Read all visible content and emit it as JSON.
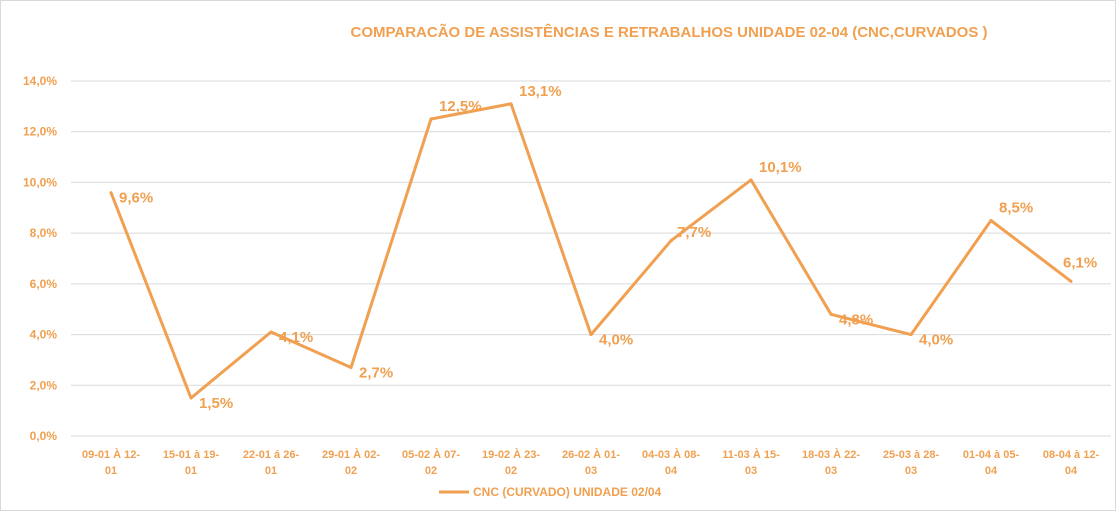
{
  "chart_data": {
    "type": "line",
    "title": "COMPARACÃO DE ASSISTÊNCIAS E RETRABALHOS UNIDADE 02-04  (CNC,CURVADOS )",
    "xlabel": "",
    "ylabel": "",
    "ylim": [
      0,
      14
    ],
    "yticks": [
      "0,0%",
      "2,0%",
      "4,0%",
      "6,0%",
      "8,0%",
      "10,0%",
      "12,0%",
      "14,0%"
    ],
    "grid": true,
    "legend_position": "bottom",
    "categories": [
      [
        "09-01 À 12-",
        "01"
      ],
      [
        "15-01 à 19-",
        "01"
      ],
      [
        "22-01 á 26-",
        "01"
      ],
      [
        "29-01 À  02-",
        "02"
      ],
      [
        "05-02 À 07-",
        "02"
      ],
      [
        "19-02 À 23-",
        "02"
      ],
      [
        "26-02 À 01-",
        "03"
      ],
      [
        "04-03 À 08-",
        "04"
      ],
      [
        "11-03 À 15-",
        "03"
      ],
      [
        "18-03 À 22-",
        "03"
      ],
      [
        "25-03 à 28-",
        "03"
      ],
      [
        "01-04 à 05-",
        "04"
      ],
      [
        "08-04 à 12-",
        "04"
      ]
    ],
    "series": [
      {
        "name": "CNC (CURVADO) UNIDADE 02/04",
        "color": "#f0a050",
        "values": [
          9.6,
          1.5,
          4.1,
          2.7,
          12.5,
          13.1,
          4.0,
          7.7,
          10.1,
          4.8,
          4.0,
          8.5,
          6.1
        ],
        "labels": [
          "9,6%",
          "1,5%",
          "4,1%",
          "2,7%",
          "12,5%",
          "13,1%",
          "4,0%",
          "7,7%",
          "10,1%",
          "4,8%",
          "4,0%",
          "8,5%",
          "6,1%"
        ]
      }
    ],
    "colors": {
      "text": "#f0a050",
      "grid": "#d9d9d9"
    }
  }
}
